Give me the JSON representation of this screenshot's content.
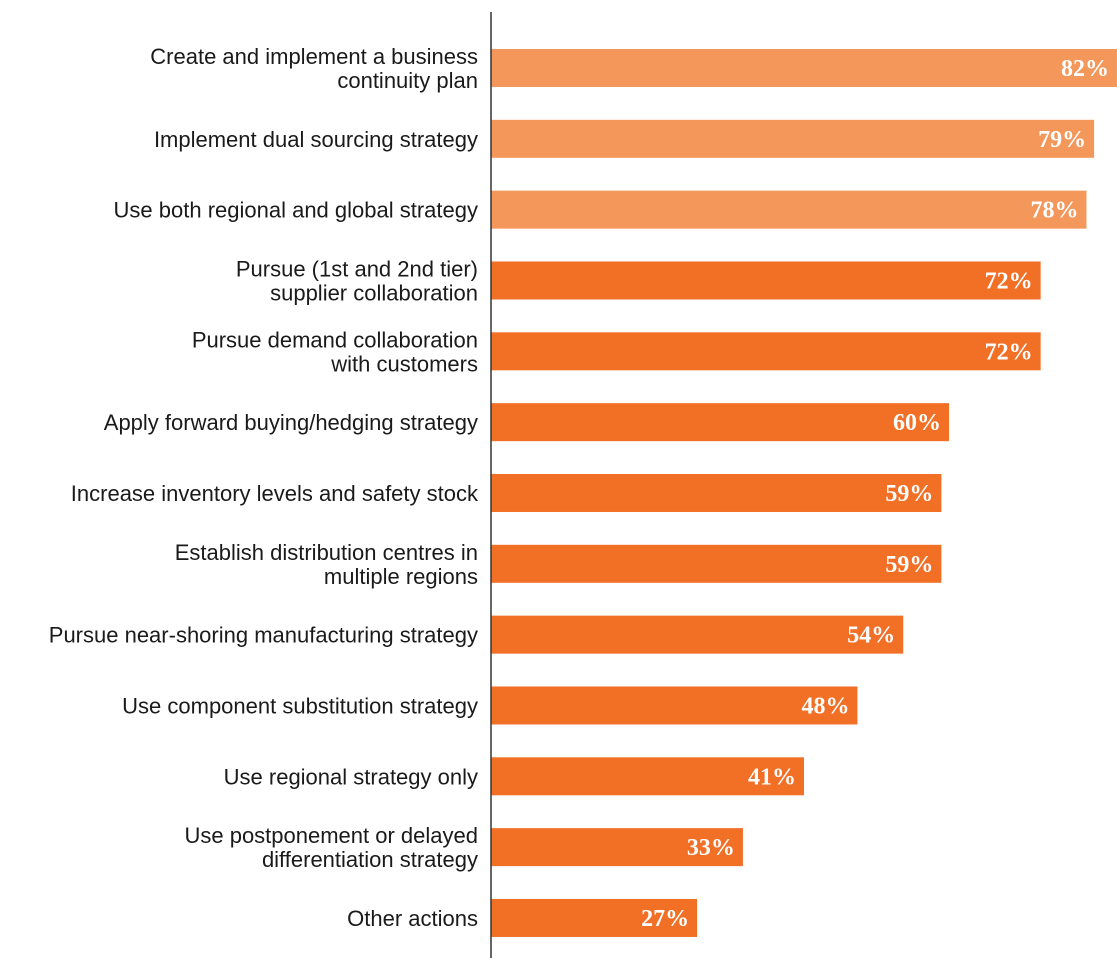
{
  "chart_data": {
    "type": "bar",
    "orientation": "horizontal",
    "categories": [
      [
        "Create and implement a business",
        "continuity plan"
      ],
      [
        "Implement dual sourcing strategy"
      ],
      [
        "Use both regional and global strategy"
      ],
      [
        "Pursue (1st and 2nd tier)",
        "supplier collaboration"
      ],
      [
        "Pursue demand collaboration",
        "with customers"
      ],
      [
        "Apply forward buying/hedging strategy"
      ],
      [
        "Increase inventory levels and safety stock"
      ],
      [
        "Establish distribution centres in",
        "multiple regions"
      ],
      [
        "Pursue near-shoring manufacturing strategy"
      ],
      [
        "Use component substitution strategy"
      ],
      [
        "Use regional strategy only"
      ],
      [
        "Use postponement or delayed",
        "differentiation strategy"
      ],
      [
        "Other actions"
      ]
    ],
    "values": [
      82,
      79,
      78,
      72,
      72,
      60,
      59,
      59,
      54,
      48,
      41,
      33,
      27
    ],
    "value_labels": [
      "82%",
      "79%",
      "78%",
      "72%",
      "72%",
      "60%",
      "59%",
      "59%",
      "54%",
      "48%",
      "41%",
      "33%",
      "27%"
    ],
    "highlight_count": 3,
    "colors": {
      "highlight": "#f4975a",
      "default": "#f26f26",
      "axis": "#333333",
      "label": "#1a1a1a",
      "value_text": "#ffffff"
    },
    "xlim": [
      0,
      82
    ],
    "title": "",
    "xlabel": "",
    "ylabel": "",
    "grid": false,
    "legend": "none"
  }
}
